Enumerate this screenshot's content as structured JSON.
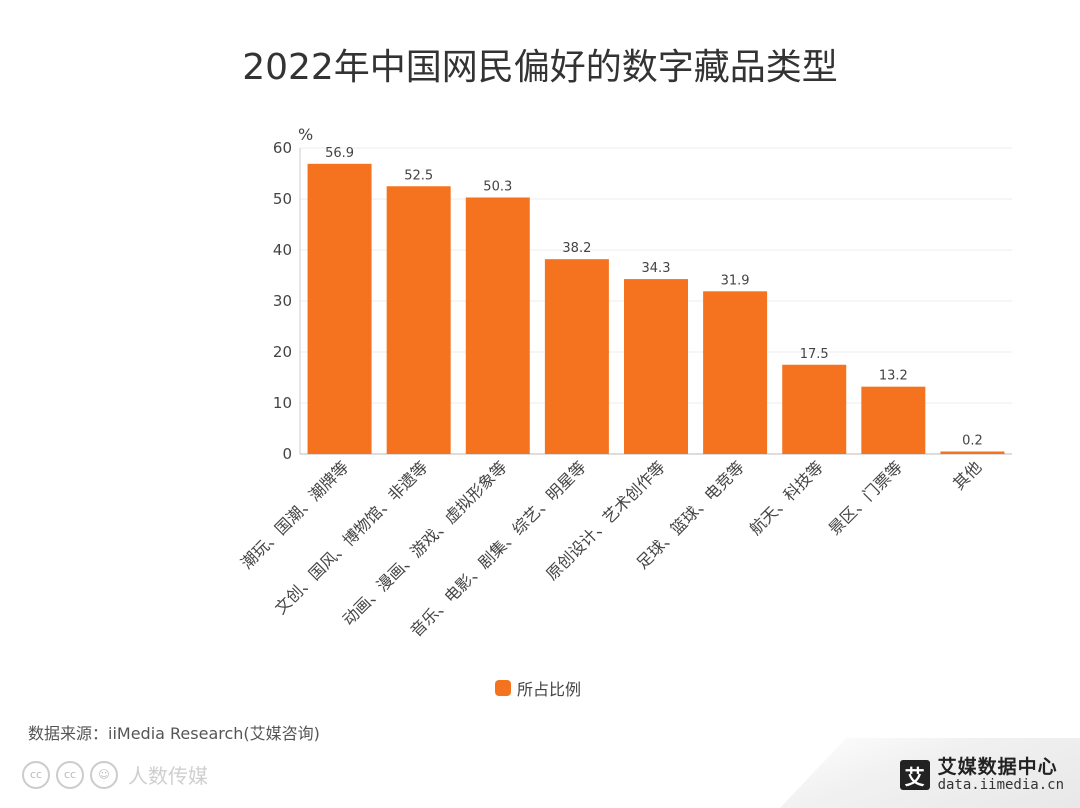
{
  "chart_data": {
    "type": "bar",
    "title": "2022年中国网民偏好的数字藏品类型",
    "ylabel": "%",
    "xlabel": "",
    "ylim": [
      0,
      60
    ],
    "yticks": [
      0,
      10,
      20,
      30,
      40,
      50,
      60
    ],
    "categories": [
      "潮玩、国潮、潮牌等",
      "文创、国风、博物馆、非遗等",
      "动画、漫画、游戏、虚拟形象等",
      "音乐、电影、剧集、综艺、明星等",
      "原创设计、艺术创作等",
      "足球、篮球、电竞等",
      "航天、科技等",
      "景区、门票等",
      "其他"
    ],
    "series": [
      {
        "name": "所占比例",
        "values": [
          56.9,
          52.5,
          50.3,
          38.2,
          34.3,
          31.9,
          17.5,
          13.2,
          0.2
        ],
        "color": "#f5731f"
      }
    ],
    "legend_position": "bottom",
    "grid": true
  },
  "source_text": "数据来源：iiMedia Research(艾媒咨询)",
  "watermark_text": "人数传媒",
  "brand": {
    "name": "艾媒数据中心",
    "url": "data.iimedia.cn",
    "logo_glyph": "艾"
  },
  "footer_icons": [
    "cc-icon",
    "cc-icon",
    "person-icon"
  ]
}
